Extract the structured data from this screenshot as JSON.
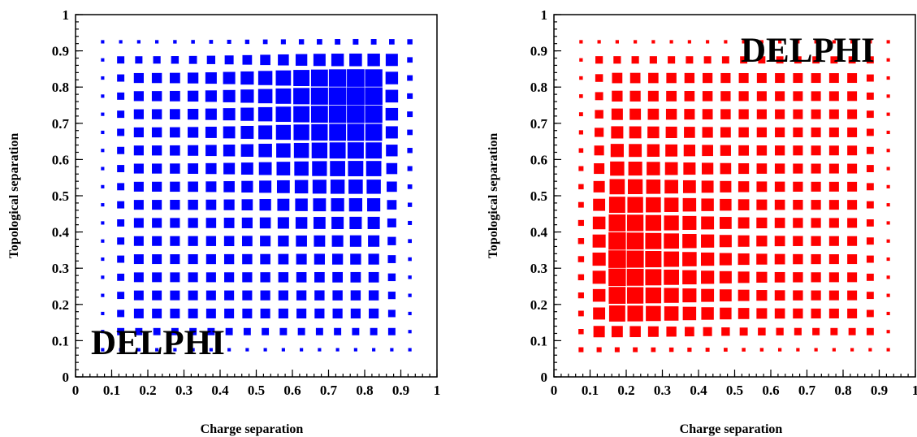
{
  "chart_data": [
    {
      "type": "heatmap",
      "style": "box",
      "color": "#0000ff",
      "xlabel": "Charge separation",
      "ylabel": "Topological separation",
      "xlim": [
        0,
        1
      ],
      "ylim": [
        0,
        1
      ],
      "xticks": [
        "0",
        "0.1",
        "0.2",
        "0.3",
        "0.4",
        "0.5",
        "0.6",
        "0.7",
        "0.8",
        "0.9",
        "1"
      ],
      "yticks": [
        "0",
        "0.1",
        "0.2",
        "0.3",
        "0.4",
        "0.5",
        "0.6",
        "0.7",
        "0.8",
        "0.9",
        "1"
      ],
      "bins": 20,
      "peak": [
        0.775,
        0.775
      ],
      "annotation": "DELPHI",
      "annotation_position": "bottom-left"
    },
    {
      "type": "heatmap",
      "style": "box",
      "color": "#ff0000",
      "xlabel": "Charge separation",
      "ylabel": "Topological separation",
      "xlim": [
        0,
        1
      ],
      "ylim": [
        0,
        1
      ],
      "xticks": [
        "0",
        "0.1",
        "0.2",
        "0.3",
        "0.4",
        "0.5",
        "0.6",
        "0.7",
        "0.8",
        "0.9",
        "1"
      ],
      "yticks": [
        "0",
        "0.1",
        "0.2",
        "0.3",
        "0.4",
        "0.5",
        "0.6",
        "0.7",
        "0.8",
        "0.9",
        "1"
      ],
      "bins": 20,
      "peak": [
        0.125,
        0.325
      ],
      "annotation": "DELPHI",
      "annotation_position": "top-right"
    }
  ]
}
